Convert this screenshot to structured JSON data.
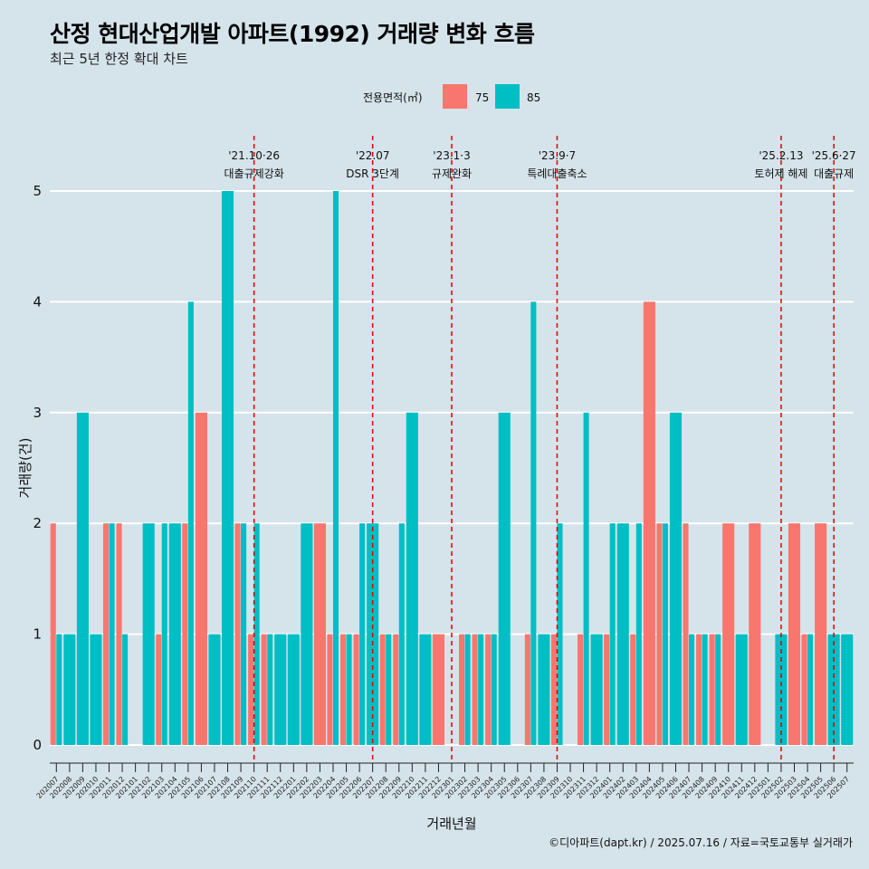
{
  "header": {
    "title": "산정 현대산업개발 아파트(1992) 거래량 변화 흐름",
    "subtitle": "최근 5년 한정 확대 차트"
  },
  "caption": "©디아파트(dapt.kr) / 2025.07.16 / 자료=국토교통부 실거래가",
  "colors": {
    "s75": "#f8766d",
    "s85": "#00bfc4",
    "grid": "#ffffff",
    "vline": "#e00000"
  },
  "chart_data": {
    "type": "bar",
    "title": "산정 현대산업개발 아파트(1992) 거래량 변화 흐름",
    "xlabel": "거래년월",
    "ylabel": "거래량(건)",
    "ylim": [
      0,
      5
    ],
    "yticks": [
      "0",
      "1",
      "2",
      "3",
      "4",
      "5"
    ],
    "legend_title": "전용면적(㎡)",
    "legend_position": "top",
    "categories": [
      "202007",
      "202008",
      "202009",
      "202010",
      "202011",
      "202012",
      "202101",
      "202102",
      "202103",
      "202104",
      "202105",
      "202106",
      "202107",
      "202108",
      "202109",
      "202110",
      "202111",
      "202112",
      "202201",
      "202202",
      "202203",
      "202204",
      "202205",
      "202206",
      "202207",
      "202208",
      "202209",
      "202210",
      "202211",
      "202212",
      "202301",
      "202302",
      "202303",
      "202304",
      "202305",
      "202306",
      "202307",
      "202308",
      "202309",
      "202310",
      "202311",
      "202312",
      "202401",
      "202402",
      "202403",
      "202404",
      "202405",
      "202406",
      "202407",
      "202408",
      "202409",
      "202410",
      "202411",
      "202412",
      "202501",
      "202502",
      "202503",
      "202504",
      "202505",
      "202506",
      "202507"
    ],
    "series": [
      {
        "name": "75",
        "values": [
          2,
          0,
          0,
          0,
          2,
          2,
          0,
          0,
          1,
          0,
          2,
          3,
          0,
          0,
          2,
          1,
          1,
          0,
          0,
          0,
          2,
          1,
          1,
          1,
          0,
          1,
          1,
          0,
          0,
          1,
          0,
          1,
          1,
          1,
          0,
          0,
          1,
          0,
          1,
          0,
          1,
          0,
          1,
          0,
          1,
          4,
          2,
          0,
          2,
          1,
          1,
          2,
          0,
          2,
          0,
          0,
          2,
          1,
          2,
          0,
          0
        ]
      },
      {
        "name": "85",
        "values": [
          1,
          1,
          3,
          1,
          2,
          1,
          0,
          2,
          2,
          2,
          4,
          0,
          1,
          5,
          2,
          2,
          1,
          1,
          1,
          2,
          0,
          5,
          1,
          2,
          2,
          1,
          2,
          3,
          1,
          0,
          0,
          1,
          1,
          1,
          3,
          0,
          4,
          1,
          2,
          0,
          3,
          1,
          2,
          2,
          2,
          0,
          2,
          3,
          1,
          1,
          1,
          0,
          1,
          0,
          0,
          1,
          0,
          1,
          0,
          1,
          1
        ]
      }
    ],
    "annotations": [
      {
        "at": "202110",
        "date": "'21.10·26",
        "label": "대출규제강화"
      },
      {
        "at": "202207",
        "date": "'22.07",
        "label": "DSR 3단계"
      },
      {
        "at": "202301",
        "date": "'23.1·3",
        "label": "규제완화"
      },
      {
        "at": "202309",
        "date": "'23.9·7",
        "label": "특례대출축소"
      },
      {
        "at": "202502",
        "date": "'25.2.13",
        "label": "토허제 해제"
      },
      {
        "at": "202506",
        "date": "'25.6·27",
        "label": "대출규제"
      }
    ]
  }
}
